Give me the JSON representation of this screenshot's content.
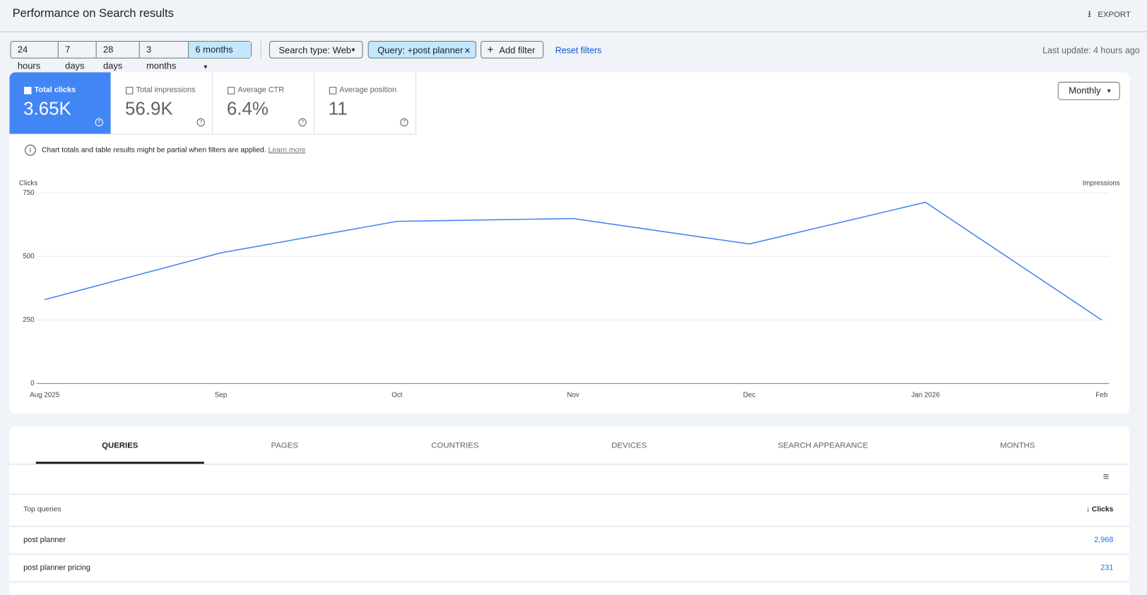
{
  "header": {
    "title": "Performance on Search results",
    "export": "EXPORT"
  },
  "filters": {
    "ranges": [
      "24 hours",
      "7 days",
      "28 days",
      "3 months",
      "6 months"
    ],
    "search_type": "Search type: Web",
    "query": "Query: +post planner",
    "add_filter": "Add filter",
    "reset": "Reset filters",
    "last_update": "Last update: 4 hours ago"
  },
  "metrics": [
    {
      "label": "Total clicks",
      "value": "3.65K"
    },
    {
      "label": "Total impressions",
      "value": "56.9K"
    },
    {
      "label": "Average CTR",
      "value": "6.4%"
    },
    {
      "label": "Average position",
      "value": "11"
    }
  ],
  "granularity": "Monthly",
  "notice": {
    "text": "Chart totals and table results might be partial when filters are applied.",
    "link": "Learn more"
  },
  "chart_data": {
    "type": "line",
    "y_label": "Clicks",
    "y2_label": "Impressions",
    "categories": [
      "Aug 2025",
      "Sep",
      "Oct",
      "Nov",
      "Dec",
      "Jan 2026",
      "Feb"
    ],
    "values": [
      330,
      514,
      638,
      649,
      549,
      713,
      250
    ],
    "color": "#4285f4",
    "ylim": [
      0,
      750
    ],
    "yticks": [
      0,
      250,
      500,
      750
    ],
    "grid": true
  },
  "tabs": [
    "QUERIES",
    "PAGES",
    "COUNTRIES",
    "DEVICES",
    "SEARCH APPEARANCE",
    "MONTHS"
  ],
  "table": {
    "header": [
      "Top queries",
      "Clicks"
    ],
    "rows": [
      [
        "post planner",
        "2,968"
      ],
      [
        "post planner pricing",
        "231"
      ]
    ]
  }
}
